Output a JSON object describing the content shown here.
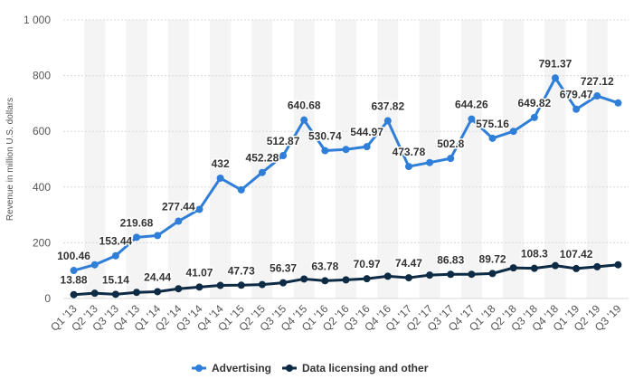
{
  "chart_data": {
    "type": "line",
    "categories": [
      "Q1 '13",
      "Q2 '13",
      "Q3 '13",
      "Q4 '13",
      "Q1 '14",
      "Q2 '14",
      "Q3 '14",
      "Q4 '14",
      "Q1 '15",
      "Q2 '15",
      "Q3 '15",
      "Q4 '15",
      "Q1 '16",
      "Q2 '16",
      "Q3 '16",
      "Q4 '16",
      "Q1 '17",
      "Q2 '17",
      "Q3 '17",
      "Q4 '17",
      "Q1 '18",
      "Q2 '18",
      "Q3 '18",
      "Q4 '18",
      "Q1 '19",
      "Q2 '19",
      "Q3 '19"
    ],
    "series": [
      {
        "name": "Advertising",
        "color": "#2f7ed8",
        "values": [
          100.46,
          121,
          153.44,
          219.68,
          226,
          277.44,
          320,
          432,
          390,
          452.28,
          512.87,
          640.68,
          530.74,
          535,
          544.97,
          637.82,
          473.78,
          488,
          502.8,
          644.26,
          575.16,
          600,
          649.82,
          791.37,
          679.47,
          727.12,
          702
        ],
        "labels": [
          "100.46",
          "",
          "153.44",
          "219.68",
          "",
          "277.44",
          "",
          "432",
          "",
          "452.28",
          "512.87",
          "640.68",
          "530.74",
          "",
          "544.97",
          "637.82",
          "473.78",
          "",
          "502.8",
          "644.26",
          "575.16",
          "",
          "649.82",
          "791.37",
          "679.47",
          "727.12",
          ""
        ]
      },
      {
        "name": "Data licensing and other",
        "color": "#0d2b45",
        "values": [
          13.88,
          19,
          15.14,
          22,
          24.44,
          35,
          41.07,
          47,
          47.73,
          50,
          56.37,
          70,
          63.78,
          67,
          70.97,
          80,
          74.47,
          84,
          86.83,
          87,
          89.72,
          110,
          108.3,
          118,
          107.42,
          114,
          121
        ],
        "labels": [
          "13.88",
          "",
          "15.14",
          "",
          "24.44",
          "",
          "41.07",
          "",
          "47.73",
          "",
          "56.37",
          "",
          "63.78",
          "",
          "70.97",
          "",
          "74.47",
          "",
          "86.83",
          "",
          "89.72",
          "",
          "108.3",
          "",
          "107.42",
          "",
          ""
        ]
      }
    ],
    "ylabel": "Revenue in million U.S. dollars",
    "ylim": [
      0,
      1000
    ],
    "yticks": [
      0,
      200,
      400,
      600,
      800,
      1000
    ],
    "ytick_labels": [
      "0",
      "200",
      "400",
      "600",
      "800",
      "1 000"
    ],
    "grid": true,
    "legend": "bottom-center"
  }
}
